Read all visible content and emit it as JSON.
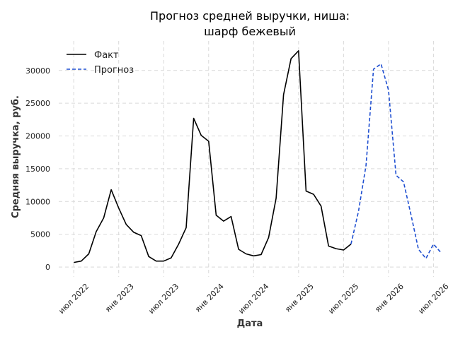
{
  "chart_data": {
    "type": "line",
    "title_line1": "Прогноз средней выручки, ниша:",
    "title_line2": "шарф бежевый",
    "xlabel": "Дата",
    "ylabel": "Средняя выручка, руб.",
    "x_tick_labels": [
      "июл 2022",
      "янв 2023",
      "июл 2023",
      "янв 2024",
      "июл 2024",
      "янв 2025",
      "июл 2025",
      "янв 2026",
      "июл 2026"
    ],
    "x_ticks": [
      "2022-07",
      "2023-01",
      "2023-07",
      "2024-01",
      "2024-07",
      "2025-01",
      "2025-07",
      "2026-01",
      "2026-07"
    ],
    "y_ticks": [
      0,
      5000,
      10000,
      15000,
      20000,
      25000,
      30000
    ],
    "ylim": [
      -1500,
      34500
    ],
    "xlim": [
      "2022-05",
      "2026-08"
    ],
    "grid": true,
    "legend_position": "top-left",
    "series": [
      {
        "name": "Факт",
        "color": "#000000",
        "style": "solid",
        "x": [
          "2022-07",
          "2022-08",
          "2022-09",
          "2022-10",
          "2022-11",
          "2022-12",
          "2023-01",
          "2023-02",
          "2023-03",
          "2023-04",
          "2023-05",
          "2023-06",
          "2023-07",
          "2023-08",
          "2023-09",
          "2023-10",
          "2023-11",
          "2023-12",
          "2024-01",
          "2024-02",
          "2024-03",
          "2024-04",
          "2024-05",
          "2024-06",
          "2024-07",
          "2024-08",
          "2024-09",
          "2024-10",
          "2024-11",
          "2024-12",
          "2025-01",
          "2025-02",
          "2025-03",
          "2025-04",
          "2025-05",
          "2025-06",
          "2025-07",
          "2025-08"
        ],
        "values": [
          700,
          900,
          2000,
          5400,
          7500,
          11800,
          9000,
          6500,
          5300,
          4800,
          1600,
          900,
          900,
          1400,
          3500,
          6000,
          22700,
          20100,
          19200,
          7900,
          7000,
          7700,
          2700,
          2000,
          1700,
          1900,
          4500,
          10500,
          26300,
          31800,
          33000,
          11600,
          11100,
          9300,
          3200,
          2800,
          2600,
          3500
        ]
      },
      {
        "name": "Прогноз",
        "color": "#1f4fd1",
        "style": "dashed",
        "x": [
          "2025-08",
          "2025-09",
          "2025-10",
          "2025-11",
          "2025-12",
          "2026-01",
          "2026-02",
          "2026-03",
          "2026-04",
          "2026-05",
          "2026-06",
          "2026-07",
          "2026-08"
        ],
        "values": [
          3500,
          8500,
          15500,
          30200,
          31000,
          27000,
          14000,
          13000,
          8000,
          2700,
          1300,
          3500,
          2200
        ]
      }
    ]
  }
}
